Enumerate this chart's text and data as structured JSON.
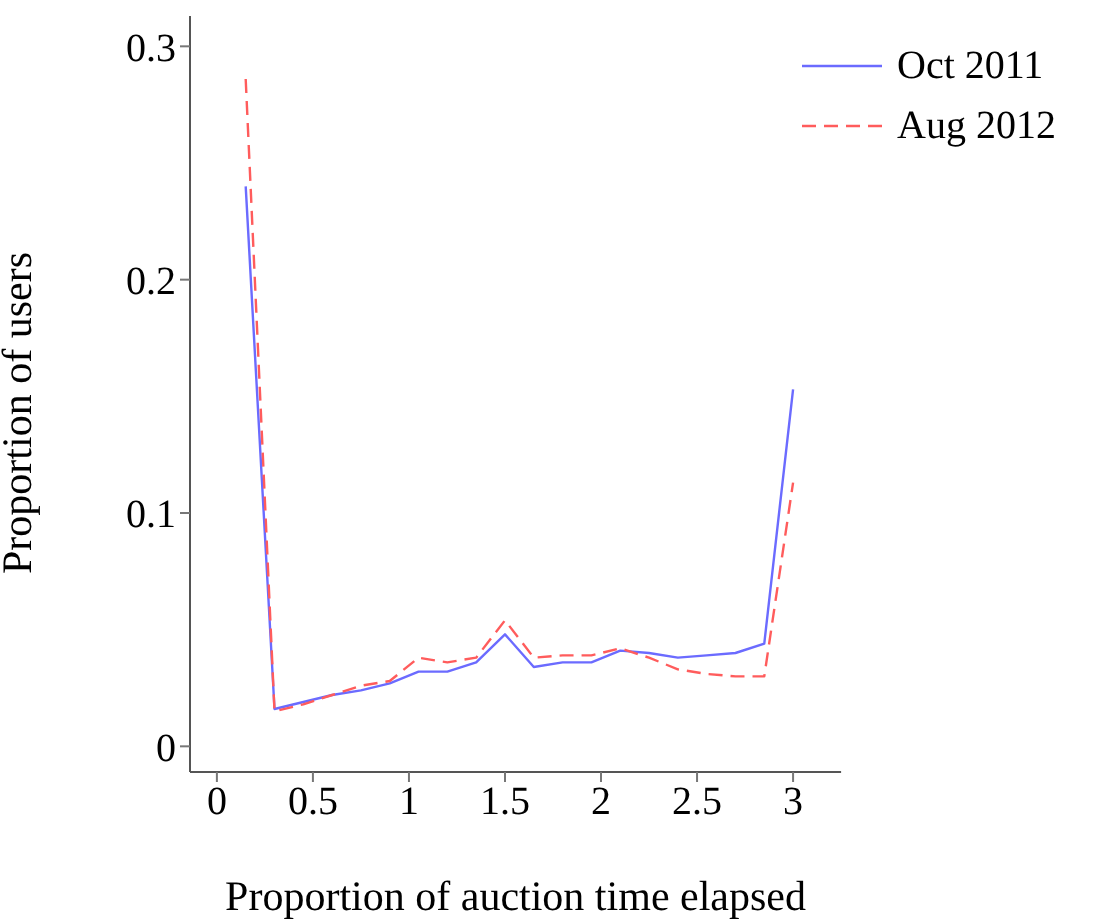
{
  "chart_data": {
    "type": "line",
    "xlabel": "Proportion of auction time elapsed",
    "ylabel": "Proportion of users",
    "x": [
      0.15,
      0.3,
      0.45,
      0.6,
      0.75,
      0.9,
      1.05,
      1.2,
      1.35,
      1.5,
      1.65,
      1.8,
      1.95,
      2.1,
      2.25,
      2.4,
      2.55,
      2.7,
      2.85,
      3.0
    ],
    "series": [
      {
        "name": "Oct 2011",
        "color": "#6b6bff",
        "line_style": "solid",
        "values": [
          0.24,
          0.016,
          0.019,
          0.022,
          0.024,
          0.027,
          0.032,
          0.032,
          0.036,
          0.048,
          0.034,
          0.036,
          0.036,
          0.041,
          0.04,
          0.038,
          0.039,
          0.04,
          0.044,
          0.153
        ]
      },
      {
        "name": "Aug 2012",
        "color": "#ff5c5c",
        "line_style": "dashed",
        "values": [
          0.286,
          0.015,
          0.018,
          0.022,
          0.026,
          0.028,
          0.038,
          0.036,
          0.038,
          0.054,
          0.038,
          0.039,
          0.039,
          0.042,
          0.038,
          0.033,
          0.031,
          0.03,
          0.03,
          0.113
        ]
      }
    ],
    "xlim": [
      -0.14,
      3.25
    ],
    "xticks": [
      0,
      0.5,
      1,
      1.5,
      2,
      2.5,
      3
    ],
    "ylim": [
      -0.011,
      0.313
    ],
    "yticks": [
      0,
      0.1,
      0.2,
      0.3
    ],
    "grid": false,
    "legend": "top right",
    "marker": "none"
  }
}
